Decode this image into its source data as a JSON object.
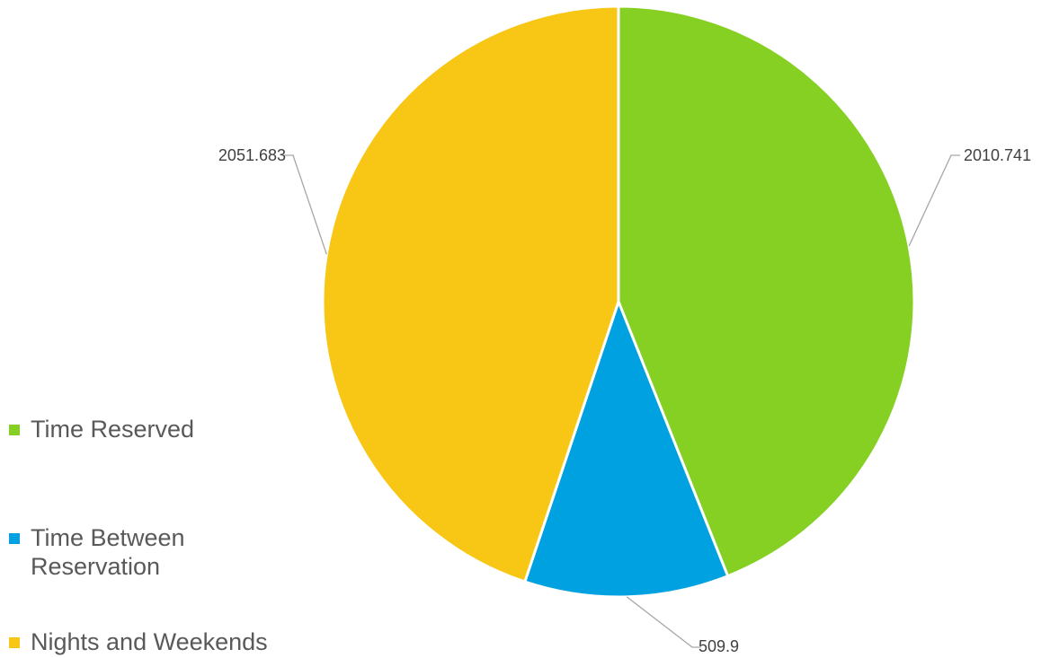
{
  "chart_data": {
    "type": "pie",
    "categories": [
      "Time Reserved",
      "Time Between Reservation",
      "Nights and Weekends"
    ],
    "values": [
      2010.741,
      509.9,
      2051.683
    ],
    "value_labels": [
      "2010.741",
      "509.9",
      "2051.683"
    ],
    "colors": [
      "#86cf23",
      "#00a1e0",
      "#f8c614"
    ],
    "start_angle_deg": 0,
    "direction": "clockwise",
    "legend": {
      "position": "left",
      "entries": [
        "Time Reserved",
        "Time Between\nReservation",
        "Nights and Weekends"
      ]
    }
  }
}
